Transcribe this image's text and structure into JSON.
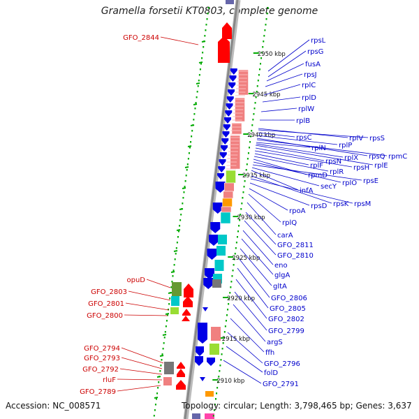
{
  "title": "Gramella forsetii KT0803, complete genome",
  "accession": "Accession: NC_008571",
  "topology": "Topology: circular; Length: 3,798,465 bp; Genes: 3,637",
  "colors": {
    "forward_gene": "#ff0000",
    "reverse_gene": "#0000e6",
    "label_blue": "#0000cc",
    "label_red": "#cc0000",
    "backbone": "#888888",
    "dots": "#00aa00",
    "salmon": "#f08080",
    "cyan": "#00c8c8",
    "lime": "#99dd33",
    "orange": "#ff9900",
    "olive": "#669933",
    "gray": "#777777"
  },
  "scale_labels": [
    "2950 kbp",
    "2945 kbp",
    "2940 kbp",
    "2935 kbp",
    "2930 kbp",
    "2925 kbp",
    "2920 kbp",
    "2915 kbp",
    "2910 kbp"
  ],
  "right_labels": [
    "rpsL",
    "rpsG",
    "fusA",
    "rpsJ",
    "rplC",
    "rplD",
    "rplW",
    "rplB",
    "rplV",
    "rpsS",
    "rpsC",
    "rplP",
    "rpsQ",
    "rpmC",
    "rplN",
    "rplX",
    "rplE",
    "rpsN",
    "rpsH",
    "rplF",
    "rplR",
    "rpmD",
    "rplO",
    "rpsE",
    "secY",
    "infA",
    "rpsK",
    "rpsM",
    "rpsD",
    "rpoA",
    "rplQ",
    "carA",
    "GFO_2811",
    "GFO_2810",
    "eno",
    "glgA",
    "gltA",
    "GFO_2806",
    "GFO_2805",
    "GFO_2802",
    "GFO_2799",
    "argS",
    "ffh",
    "GFO_2796",
    "folD",
    "GFO_2791"
  ],
  "left_labels": [
    "GFO_2844",
    "opuD",
    "GFO_2803",
    "GFO_2801",
    "GFO_2800",
    "GFO_2794",
    "GFO_2793",
    "GFO_2792",
    "rluF",
    "GFO_2789"
  ]
}
